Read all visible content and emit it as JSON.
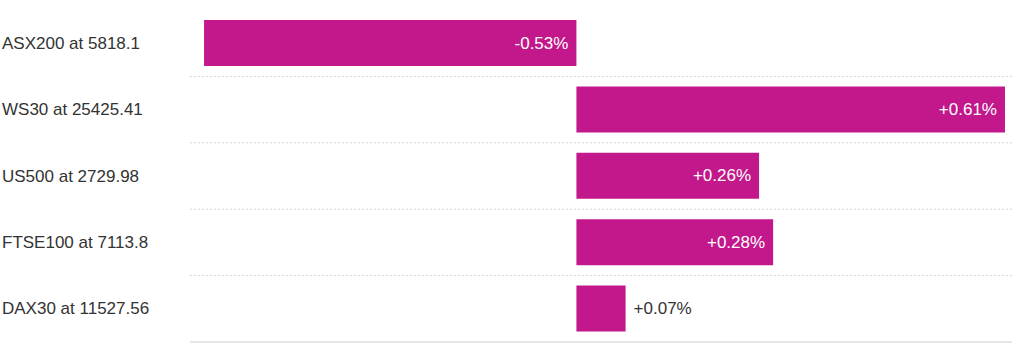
{
  "chart_data": {
    "type": "bar",
    "orientation": "horizontal",
    "categories": [
      "ASX200 at 5818.1",
      "WS30 at 25425.41",
      "US500 at 2729.98",
      "FTSE100 at 7113.8",
      "DAX30 at 11527.56"
    ],
    "values": [
      -0.53,
      0.61,
      0.26,
      0.28,
      0.07
    ],
    "value_labels": [
      "-0.53%",
      "+0.61%",
      "+0.26%",
      "+0.28%",
      "+0.07%"
    ],
    "color": "#c2188b",
    "xlim": [
      -0.55,
      0.62
    ],
    "xticks": [],
    "grid": true,
    "data_labels": true,
    "tick_labels": "y"
  }
}
